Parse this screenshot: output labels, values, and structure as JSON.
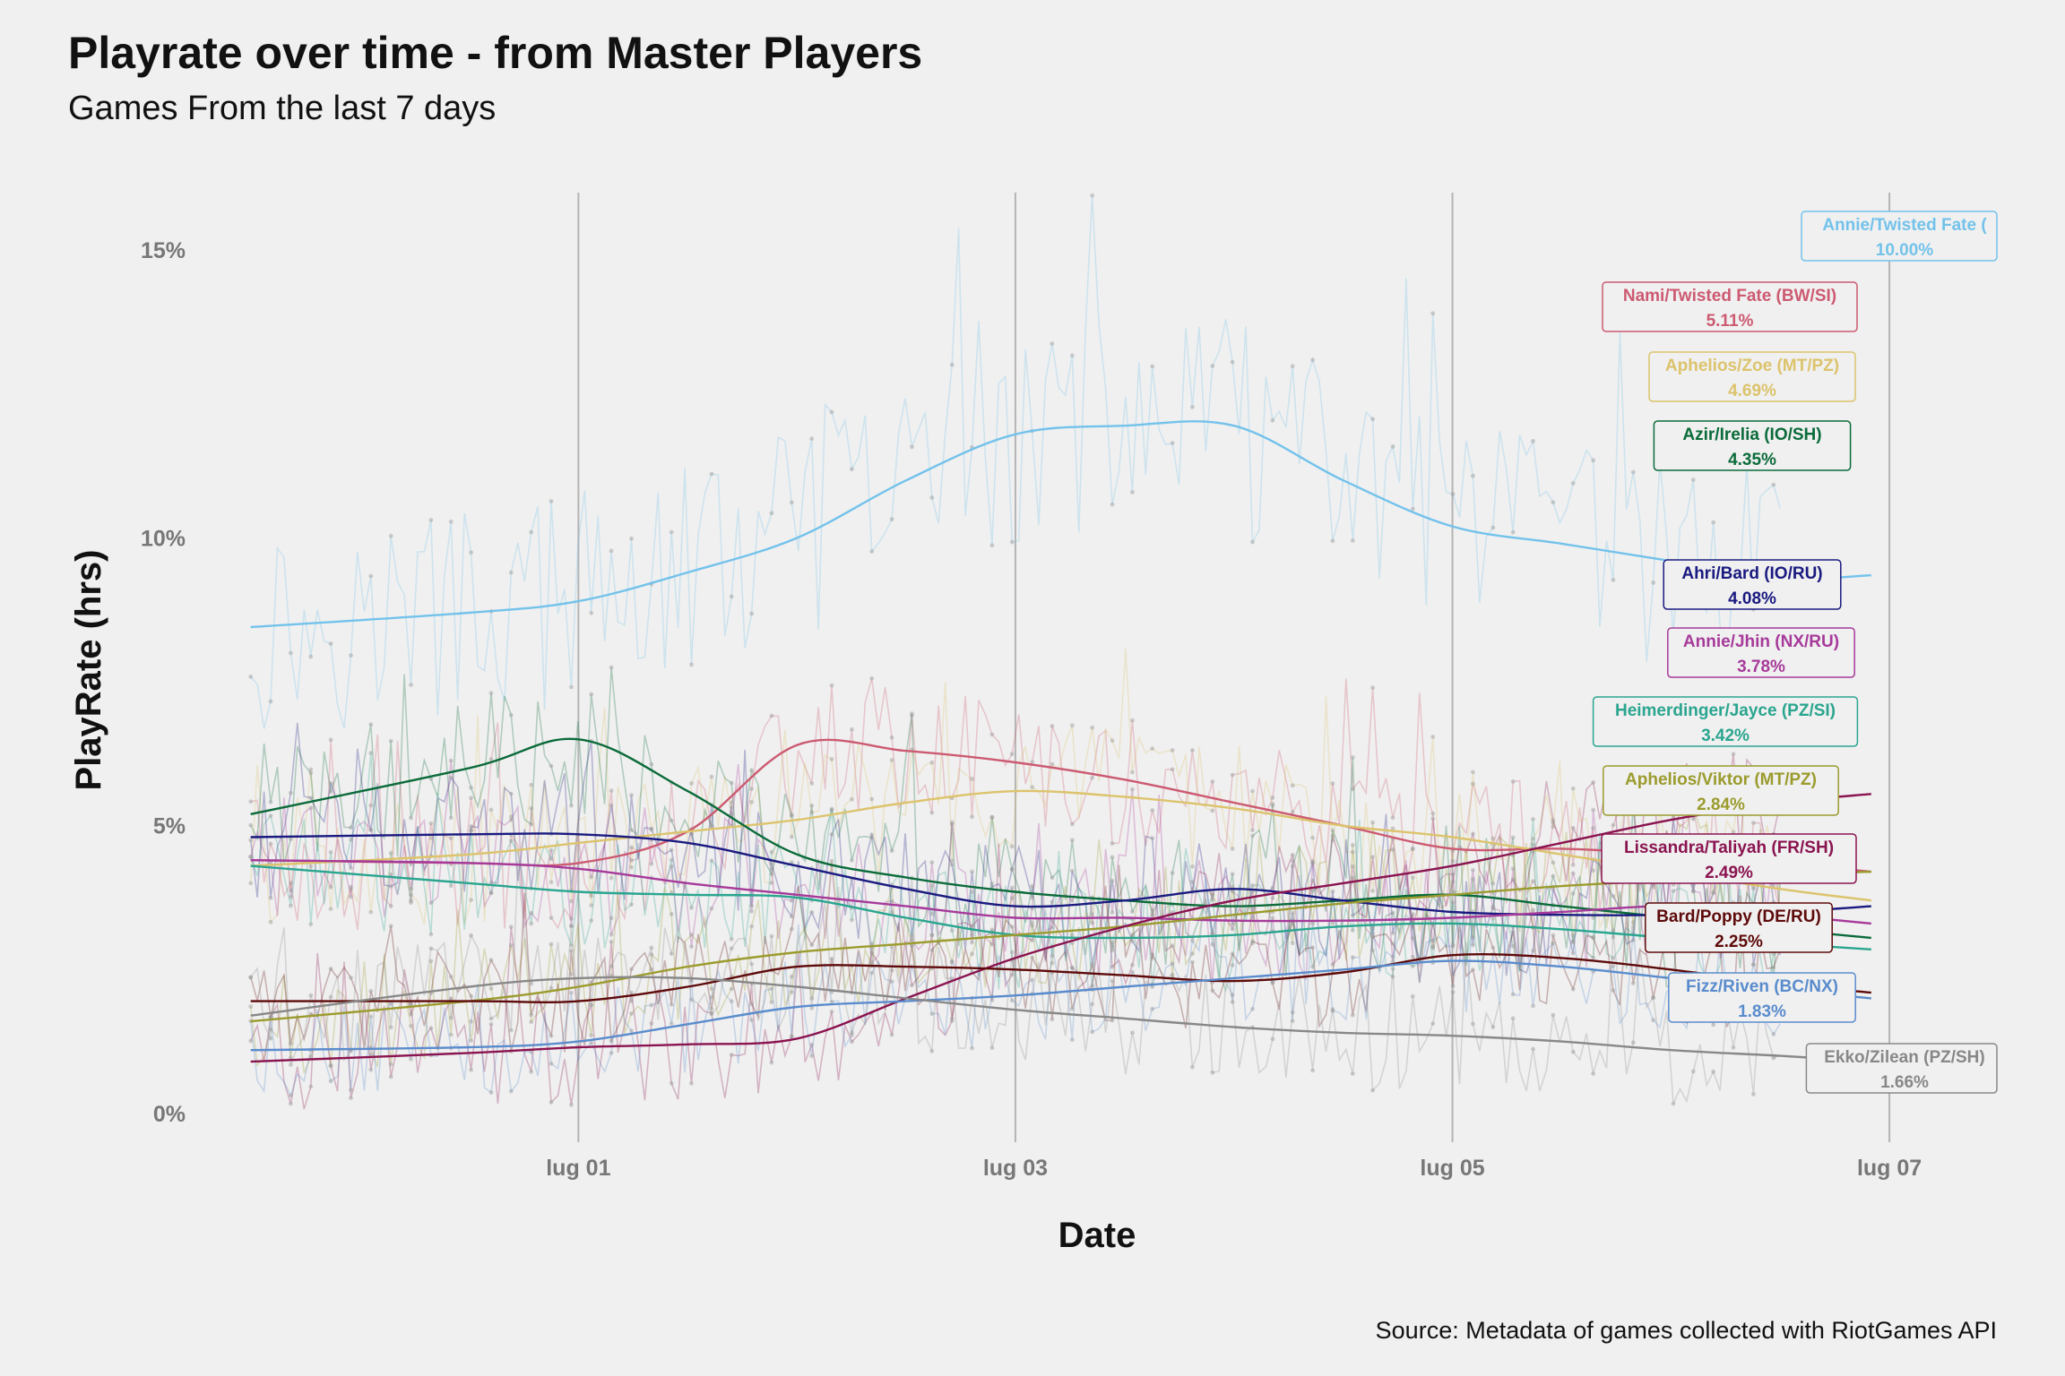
{
  "title": "Playrate over time - from Master Players",
  "subtitle": "Games From the last 7 days",
  "caption": "Source: Metadata of games collected with RiotGames API",
  "chart_data": {
    "type": "line",
    "xlabel": "Date",
    "ylabel": "PlayRate (hrs)",
    "x_ticks": [
      "lug 01",
      "lug 03",
      "lug 05",
      "lug 07"
    ],
    "y_ticks": [
      "0%",
      "5%",
      "10%",
      "15%"
    ],
    "xlim": [
      "2020-06-29T14:00",
      "2020-07-07T12:00"
    ],
    "ylim": [
      -0.5,
      16
    ],
    "grid": {
      "vertical_major": true,
      "horizontal": false
    },
    "legend": "direct labels at right",
    "smooth_x": [
      "2020-06-29T12:00",
      "2020-06-30T12:00",
      "2020-07-01T00:00",
      "2020-07-01T12:00",
      "2020-07-02T00:00",
      "2020-07-02T12:00",
      "2020-07-03T00:00",
      "2020-07-03T12:00",
      "2020-07-04T00:00",
      "2020-07-04T12:00",
      "2020-07-05T00:00",
      "2020-07-05T12:00",
      "2020-07-06T00:00",
      "2020-07-06T12:00",
      "2020-07-06T22:00"
    ],
    "series": [
      {
        "name": "Annie/Twisted Fate (",
        "label_value": "10.00%",
        "color": "#73c2eb",
        "smooth": [
          8.45,
          8.7,
          8.9,
          9.4,
          10.0,
          11.0,
          11.8,
          11.95,
          11.95,
          11.0,
          10.2,
          9.9,
          9.6,
          9.3,
          9.35
        ],
        "raw_noise": 1.9
      },
      {
        "name": "Nami/Twisted Fate (BW/SI)",
        "label_value": "5.11%",
        "color": "#cc5a71",
        "smooth": [
          4.4,
          4.35,
          4.35,
          4.9,
          6.4,
          6.3,
          6.1,
          5.8,
          5.4,
          5.0,
          4.6,
          4.6,
          4.5,
          4.35,
          4.2
        ],
        "raw_noise": 1.2
      },
      {
        "name": "Aphelios/Zoe (MT/PZ)",
        "label_value": "4.69%",
        "color": "#dcc36c",
        "smooth": [
          4.3,
          4.5,
          4.7,
          4.9,
          5.1,
          5.4,
          5.6,
          5.5,
          5.3,
          5.0,
          4.8,
          4.5,
          4.2,
          3.9,
          3.7
        ],
        "raw_noise": 1.2
      },
      {
        "name": "Azir/Irelia (IO/SH)",
        "label_value": "4.35%",
        "color": "#0b6b3a",
        "smooth": [
          5.2,
          6.0,
          6.5,
          5.6,
          4.5,
          4.1,
          3.85,
          3.7,
          3.6,
          3.7,
          3.8,
          3.6,
          3.4,
          3.2,
          3.05
        ],
        "raw_noise": 1.3
      },
      {
        "name": "Ahri/Bard (IO/RU)",
        "label_value": "4.08%",
        "color": "#1a1a80",
        "smooth": [
          4.8,
          4.85,
          4.85,
          4.7,
          4.3,
          3.9,
          3.6,
          3.7,
          3.9,
          3.7,
          3.5,
          3.45,
          3.45,
          3.5,
          3.6
        ],
        "raw_noise": 1.1
      },
      {
        "name": "Annie/Jhin (NX/RU)",
        "label_value": "3.78%",
        "color": "#a63a9a",
        "smooth": [
          4.4,
          4.35,
          4.25,
          4.0,
          3.8,
          3.6,
          3.4,
          3.4,
          3.35,
          3.35,
          3.4,
          3.5,
          3.6,
          3.45,
          3.3
        ],
        "raw_noise": 1.1
      },
      {
        "name": "Heimerdinger/Jayce (PZ/SI)",
        "label_value": "3.42%",
        "color": "#2aa58f",
        "smooth": [
          4.3,
          4.0,
          3.85,
          3.8,
          3.75,
          3.4,
          3.1,
          3.05,
          3.1,
          3.25,
          3.3,
          3.2,
          3.05,
          2.95,
          2.85
        ],
        "raw_noise": 1.0
      },
      {
        "name": "Aphelios/Viktor (MT/PZ)",
        "label_value": "2.84%",
        "color": "#9b9b2e",
        "smooth": [
          1.6,
          1.95,
          2.2,
          2.55,
          2.8,
          2.95,
          3.1,
          3.25,
          3.45,
          3.65,
          3.8,
          3.95,
          4.05,
          4.15,
          4.2
        ],
        "raw_noise": 1.0
      },
      {
        "name": "Lissandra/Taliyah (FR/SH)",
        "label_value": "2.49%",
        "color": "#8a1450",
        "smooth": [
          0.9,
          1.05,
          1.15,
          1.2,
          1.3,
          2.0,
          2.7,
          3.25,
          3.7,
          4.0,
          4.3,
          4.7,
          5.1,
          5.4,
          5.55
        ],
        "raw_noise": 1.0
      },
      {
        "name": "Bard/Poppy (DE/RU)",
        "label_value": "2.25%",
        "color": "#5e0a0a",
        "smooth": [
          1.95,
          1.95,
          1.95,
          2.2,
          2.55,
          2.55,
          2.5,
          2.4,
          2.3,
          2.45,
          2.75,
          2.7,
          2.5,
          2.25,
          2.1
        ],
        "raw_noise": 0.9
      },
      {
        "name": "Fizz/Riven (BC/NX)",
        "label_value": "1.83%",
        "color": "#5a8ccd",
        "smooth": [
          1.1,
          1.15,
          1.25,
          1.55,
          1.85,
          1.95,
          2.05,
          2.2,
          2.35,
          2.5,
          2.65,
          2.55,
          2.35,
          2.15,
          2.0
        ],
        "raw_noise": 0.9
      },
      {
        "name": "Ekko/Zilean (PZ/SH)",
        "label_value": "1.66%",
        "color": "#888888",
        "smooth": [
          1.7,
          2.2,
          2.35,
          2.35,
          2.2,
          2.0,
          1.8,
          1.65,
          1.5,
          1.4,
          1.35,
          1.25,
          1.1,
          1.0,
          0.9
        ],
        "raw_noise": 1.0
      }
    ]
  }
}
